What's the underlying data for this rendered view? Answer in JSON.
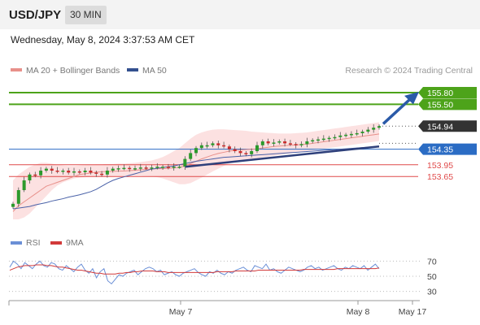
{
  "header": {
    "symbol": "USD/JPY",
    "timeframe": "30 MIN"
  },
  "datetime": "Wednesday, May 8, 2024 3:37:53 AM CET",
  "legend": {
    "ma20_label": "MA 20 + Bollinger Bands",
    "ma50_label": "MA 50",
    "credit": "Research © 2024 Trading Central"
  },
  "indicator_legend": {
    "rsi_label": "RSI",
    "ma9_label": "9MA"
  },
  "colors": {
    "resistance": "#4da31a",
    "current": "#333333",
    "support": "#2b6cc4",
    "minor_support": "#e04a4a",
    "ma20": "#e8908a",
    "band": "#fbd9d9",
    "ma50": "#4a62a8",
    "arrow": "#2a5aa8",
    "rsi": "#6b8fd6",
    "ma9": "#d23a3a",
    "up": "#2c9a2c",
    "down": "#cc2b2b"
  },
  "chart_data": [
    {
      "type": "candlestick",
      "series": [
        "MA 20 + Bollinger Bands",
        "MA 50"
      ],
      "price_levels": [
        {
          "label": "155.80",
          "value": 155.8,
          "kind": "resistance"
        },
        {
          "label": "155.50",
          "value": 155.5,
          "kind": "resistance"
        },
        {
          "label": "154.94",
          "value": 154.94,
          "kind": "current"
        },
        {
          "label": "154.35",
          "value": 154.35,
          "kind": "support"
        },
        {
          "label": "153.95",
          "value": 153.95,
          "kind": "minor_support"
        },
        {
          "label": "153.65",
          "value": 153.65,
          "kind": "minor_support"
        }
      ],
      "ylim": [
        152.55,
        156.05
      ],
      "x_ticks": [
        "May 7",
        "May 8",
        "May 17"
      ],
      "closes": [
        152.95,
        153.3,
        153.55,
        153.7,
        153.68,
        153.8,
        153.85,
        153.8,
        153.78,
        153.8,
        153.75,
        153.78,
        153.76,
        153.8,
        153.75,
        153.72,
        153.7,
        153.8,
        153.85,
        153.86,
        153.87,
        153.85,
        153.86,
        153.88,
        153.87,
        153.88,
        153.9,
        153.9,
        153.88,
        153.9,
        153.9,
        154.1,
        154.25,
        154.38,
        154.45,
        154.45,
        154.5,
        154.45,
        154.42,
        154.35,
        154.3,
        154.25,
        154.22,
        154.3,
        154.45,
        154.55,
        154.5,
        154.52,
        154.55,
        154.5,
        154.48,
        154.45,
        154.48,
        154.55,
        154.58,
        154.6,
        154.62,
        154.64,
        154.66,
        154.7,
        154.72,
        154.74,
        154.76,
        154.8,
        154.85,
        154.9,
        154.94
      ],
      "ma20": [
        152.75,
        152.9,
        153.0,
        153.1,
        153.2,
        153.3,
        153.4,
        153.45,
        153.5,
        153.55,
        153.6,
        153.65,
        153.7,
        153.72,
        153.74,
        153.76,
        153.77,
        153.78,
        153.78,
        153.79,
        153.79,
        153.8,
        153.81,
        153.82,
        153.83,
        153.84,
        153.85,
        153.85,
        153.86,
        153.87,
        153.88,
        153.92,
        153.98,
        154.04,
        154.1,
        154.15,
        154.2,
        154.24,
        154.27,
        154.3,
        154.32,
        154.33,
        154.34,
        154.35,
        154.36,
        154.38,
        154.4,
        154.42,
        154.43,
        154.44,
        154.45,
        154.46,
        154.47,
        154.48,
        154.5,
        154.52,
        154.54,
        154.56,
        154.58,
        154.6,
        154.62,
        154.64,
        154.66,
        154.68,
        154.7,
        154.72,
        154.74
      ],
      "band_upper": [
        153.55,
        153.7,
        153.8,
        153.9,
        153.95,
        154.0,
        154.0,
        153.98,
        153.95,
        153.93,
        153.92,
        153.92,
        153.93,
        153.94,
        153.95,
        153.96,
        153.96,
        153.97,
        153.97,
        153.98,
        153.98,
        153.99,
        154.0,
        154.02,
        154.04,
        154.06,
        154.1,
        154.15,
        154.22,
        154.3,
        154.38,
        154.5,
        154.62,
        154.72,
        154.78,
        154.82,
        154.85,
        154.86,
        154.86,
        154.85,
        154.84,
        154.83,
        154.82,
        154.8,
        154.79,
        154.78,
        154.77,
        154.76,
        154.75,
        154.75,
        154.75,
        154.76,
        154.77,
        154.78,
        154.8,
        154.82,
        154.84,
        154.86,
        154.88,
        154.9,
        154.92,
        154.94,
        154.96,
        154.98,
        155.0,
        155.02,
        155.04
      ],
      "band_lower": [
        152.55,
        152.55,
        152.6,
        152.7,
        152.85,
        153.0,
        153.15,
        153.3,
        153.42,
        153.5,
        153.55,
        153.6,
        153.62,
        153.63,
        153.64,
        153.64,
        153.65,
        153.65,
        153.66,
        153.66,
        153.67,
        153.67,
        153.67,
        153.67,
        153.66,
        153.65,
        153.63,
        153.6,
        153.55,
        153.5,
        153.45,
        153.45,
        153.48,
        153.55,
        153.62,
        153.7,
        153.78,
        153.85,
        153.92,
        153.98,
        154.02,
        154.05,
        154.08,
        154.1,
        154.12,
        154.14,
        154.16,
        154.18,
        154.2,
        154.22,
        154.24,
        154.26,
        154.28,
        154.3,
        154.32,
        154.34,
        154.36,
        154.38,
        154.4,
        154.42,
        154.44,
        154.46,
        154.48,
        154.5,
        154.52,
        154.54,
        154.56
      ],
      "ma50": [
        152.82,
        152.84,
        152.86,
        152.88,
        152.92,
        152.95,
        152.98,
        153.02,
        153.05,
        153.08,
        153.12,
        153.15,
        153.18,
        153.22,
        153.26,
        153.32,
        153.4,
        153.48,
        153.55,
        153.6,
        153.64,
        153.68,
        153.72,
        153.76,
        153.8,
        153.84,
        153.86,
        153.88,
        153.9,
        153.92,
        153.95,
        153.98,
        154.01,
        154.04,
        154.06,
        154.08,
        154.1,
        154.12,
        154.14,
        154.15,
        154.16,
        154.17,
        154.18,
        154.19,
        154.2,
        154.21,
        154.22,
        154.23,
        154.24,
        154.25,
        154.26,
        154.27,
        154.28,
        154.29,
        154.3,
        154.31,
        154.32,
        154.33,
        154.34,
        154.35,
        154.36,
        154.37,
        154.38,
        154.39,
        154.4,
        154.41,
        154.42
      ]
    },
    {
      "type": "line",
      "series": [
        "RSI",
        "9MA"
      ],
      "y_ticks": [
        70,
        50,
        30
      ],
      "ylim": [
        20,
        80
      ],
      "rsi": [
        62,
        70,
        66,
        60,
        68,
        64,
        60,
        66,
        70,
        64,
        62,
        68,
        66,
        60,
        58,
        64,
        60,
        56,
        62,
        66,
        58,
        54,
        60,
        48,
        56,
        60,
        44,
        40,
        46,
        52,
        50,
        54,
        56,
        58,
        52,
        56,
        60,
        62,
        60,
        56,
        58,
        52,
        54,
        56,
        52,
        50,
        54,
        56,
        58,
        60,
        55,
        52,
        50,
        56,
        54,
        58,
        54,
        52,
        56,
        54,
        58,
        60,
        62,
        58,
        56,
        64,
        62,
        60,
        66,
        58,
        60,
        56,
        54,
        58,
        62,
        60,
        58,
        56,
        58,
        62,
        64,
        60,
        62,
        58,
        60,
        62,
        64,
        60,
        58,
        62,
        60,
        64,
        62,
        60,
        64,
        58,
        62,
        66,
        60
      ],
      "ma9": [
        58,
        60,
        62,
        63,
        64,
        64,
        64,
        65,
        65,
        65,
        64,
        64,
        63,
        62,
        62,
        61,
        60,
        59,
        58,
        58,
        57,
        56,
        55,
        54,
        54,
        53,
        53,
        53,
        53,
        54,
        54,
        55,
        55,
        56,
        56,
        57,
        57,
        57,
        57,
        56,
        56,
        56,
        55,
        55,
        55,
        55,
        55,
        55,
        55,
        55,
        55,
        55,
        55,
        55,
        55,
        56,
        56,
        56,
        56,
        56,
        57,
        57,
        57,
        57,
        57,
        57,
        58,
        58,
        58,
        58,
        58,
        58,
        58,
        58,
        58,
        58,
        58,
        58,
        59,
        59,
        59,
        59,
        59,
        59,
        59,
        59,
        59,
        60,
        60,
        60,
        60,
        60,
        60,
        60,
        60,
        60,
        60,
        60,
        61
      ]
    }
  ]
}
